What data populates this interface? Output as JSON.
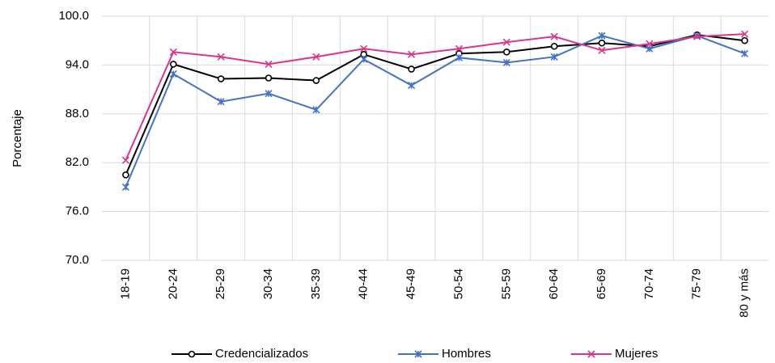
{
  "chart_data": {
    "type": "line",
    "y_label": "Porcentaje",
    "categories": [
      "18-19",
      "20-24",
      "25-29",
      "30-34",
      "35-39",
      "40-44",
      "45-49",
      "50-54",
      "55-59",
      "60-64",
      "65-69",
      "70-74",
      "75-79",
      "80 y más"
    ],
    "series": [
      {
        "name": "Credencializados",
        "color": "#000000",
        "marker": "circle",
        "values": [
          80.5,
          94.1,
          92.3,
          92.4,
          92.1,
          95.3,
          93.5,
          95.4,
          95.6,
          96.3,
          96.7,
          96.3,
          97.7,
          97.0
        ]
      },
      {
        "name": "Hombres",
        "color": "#4472c4",
        "marker": "star",
        "values": [
          79.0,
          92.9,
          89.5,
          90.5,
          88.5,
          94.7,
          91.5,
          94.9,
          94.3,
          95.0,
          97.6,
          96.0,
          97.6,
          95.4
        ]
      },
      {
        "name": "Mujeres",
        "color": "#d9368b",
        "marker": "x",
        "values": [
          82.3,
          95.6,
          95.0,
          94.1,
          95.0,
          96.0,
          95.3,
          96.0,
          96.8,
          97.5,
          95.8,
          96.6,
          97.5,
          97.8
        ]
      }
    ],
    "ylim": [
      70,
      100
    ],
    "yticks": [
      {
        "value": 70,
        "label": "70.0"
      },
      {
        "value": 76,
        "label": "76.0"
      },
      {
        "value": 82,
        "label": "82.0"
      },
      {
        "value": 88,
        "label": "88.0"
      },
      {
        "value": 94,
        "label": "94.0"
      },
      {
        "value": 100,
        "label": "100.0"
      }
    ],
    "grid": true,
    "legend": "bottom"
  }
}
